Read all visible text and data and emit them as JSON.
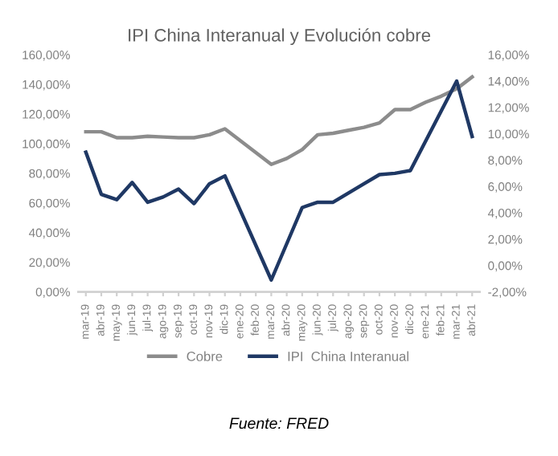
{
  "chart_data": {
    "type": "line",
    "title": "IPI China Interanual y Evolución cobre",
    "categories": [
      "mar-19",
      "abr-19",
      "may-19",
      "jun-19",
      "jul-19",
      "ago-19",
      "sep-19",
      "oct-19",
      "nov-19",
      "dic-19",
      "ene-20",
      "feb-20",
      "mar-20",
      "abr-20",
      "may-20",
      "jun-20",
      "jul-20",
      "ago-20",
      "sep-20",
      "oct-20",
      "nov-20",
      "dic-20",
      "ene-21",
      "feb-21",
      "mar-21",
      "abr-21"
    ],
    "series": [
      {
        "name": "Cobre",
        "color": "#8c8c8c",
        "values": [
          108,
          108,
          104,
          104,
          105,
          104.5,
          104,
          104,
          106,
          110,
          102,
          94,
          86,
          90,
          96,
          106,
          107,
          109,
          111,
          114,
          123,
          123,
          128,
          132,
          137,
          145
        ]
      },
      {
        "name": "IPI  China Interanual",
        "color": "#1f3864",
        "axis": "y2",
        "values": [
          8.6,
          5.4,
          5.0,
          6.3,
          4.8,
          5.2,
          5.8,
          4.7,
          6.2,
          6.8,
          null,
          null,
          -1.1,
          null,
          4.4,
          4.8,
          4.8,
          5.5,
          6.2,
          6.9,
          7.0,
          7.2,
          null,
          null,
          14.0,
          9.8
        ]
      }
    ],
    "ylim": [
      0,
      160
    ],
    "yticks": [
      {
        "value": 0,
        "label": "0,00%"
      },
      {
        "value": 20,
        "label": "20,00%"
      },
      {
        "value": 40,
        "label": "40,00%"
      },
      {
        "value": 60,
        "label": "60,00%"
      },
      {
        "value": 80,
        "label": "80,00%"
      },
      {
        "value": 100,
        "label": "100,00%"
      },
      {
        "value": 120,
        "label": "120,00%"
      },
      {
        "value": 140,
        "label": "140,00%"
      },
      {
        "value": 160,
        "label": "160,00%"
      }
    ],
    "y2lim": [
      -2,
      16
    ],
    "y2ticks": [
      {
        "value": -2,
        "label": "-2,00%"
      },
      {
        "value": 0,
        "label": "0,00%"
      },
      {
        "value": 2,
        "label": "2,00%"
      },
      {
        "value": 4,
        "label": "4,00%"
      },
      {
        "value": 6,
        "label": "6,00%"
      },
      {
        "value": 8,
        "label": "8,00%"
      },
      {
        "value": 10,
        "label": "10,00%"
      },
      {
        "value": 12,
        "label": "12,00%"
      },
      {
        "value": 14,
        "label": "14,00%"
      },
      {
        "value": 16,
        "label": "16,00%"
      }
    ],
    "legend": "bottom",
    "marker": "none",
    "line_style": "solid",
    "annotations": [
      "Fuente: FRED"
    ]
  }
}
